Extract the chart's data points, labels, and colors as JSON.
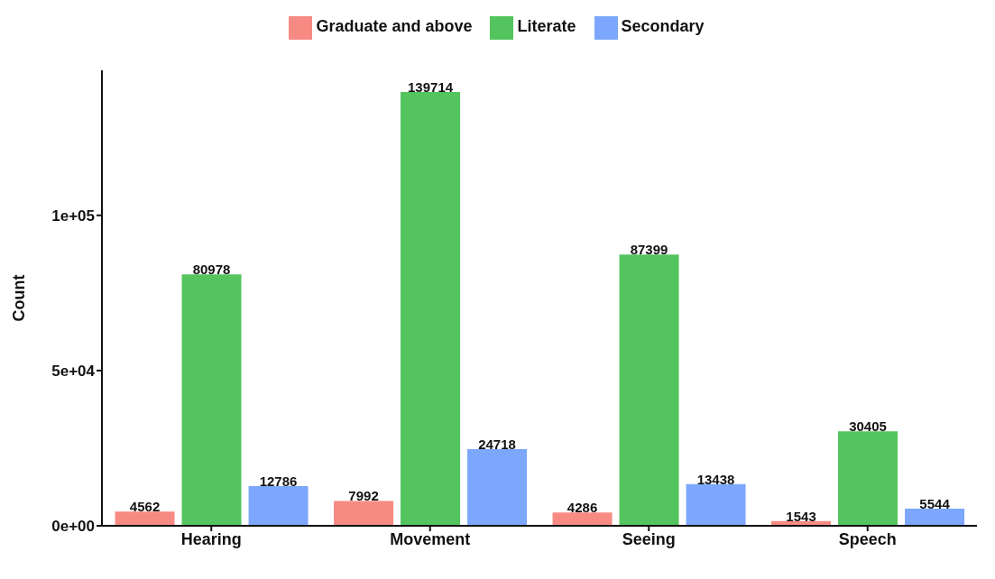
{
  "chart_data": {
    "type": "bar",
    "ylabel": "Count",
    "categories": [
      "Hearing",
      "Movement",
      "Seeing",
      "Speech"
    ],
    "series": [
      {
        "name": "Graduate and above",
        "color": "#f88a84",
        "values": [
          4562,
          7992,
          4286,
          1543
        ]
      },
      {
        "name": "Literate",
        "color": "#53c45e",
        "values": [
          80978,
          139714,
          87399,
          30405
        ]
      },
      {
        "name": "Secondary",
        "color": "#7da7fd",
        "values": [
          12786,
          24718,
          13438,
          5544
        ]
      }
    ],
    "ylim": [
      0,
      146700
    ],
    "yticks": [
      {
        "value": 0,
        "label": "0e+00"
      },
      {
        "value": 50000,
        "label": "5e+04"
      },
      {
        "value": 100000,
        "label": "1e+05"
      }
    ],
    "legend": "top",
    "data_labels": true
  }
}
